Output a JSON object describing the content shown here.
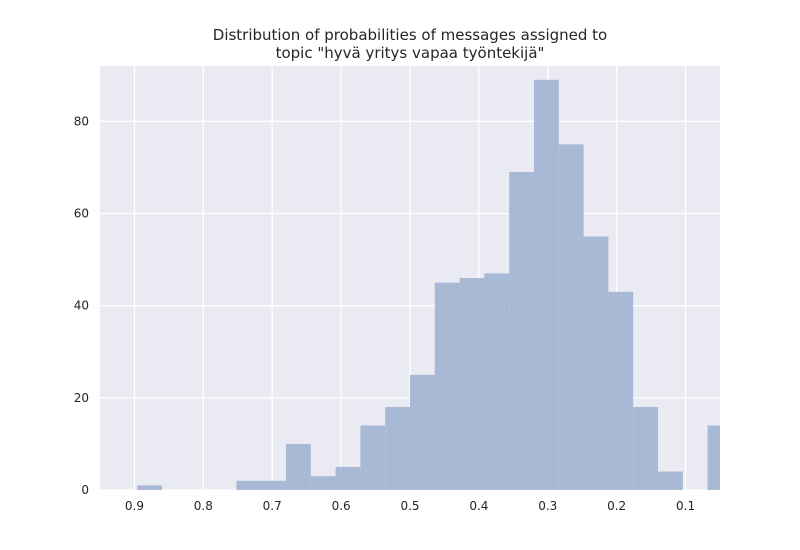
{
  "chart_data": {
    "type": "bar",
    "title": [
      "Distribution of probabilities of messages assigned to",
      "topic \"hyvä yritys vapaa työntekijä\""
    ],
    "xlabel": "",
    "ylabel": "",
    "x_axis": "reversed",
    "xlim": [
      0.95,
      0.05
    ],
    "ylim": [
      0,
      92
    ],
    "grid": true,
    "bar_color": "#a8b9d6",
    "plot_background": "#eaeaf2",
    "grid_color": "#ffffff",
    "xticks": [
      0.9,
      0.8,
      0.7,
      0.6,
      0.5,
      0.4,
      0.3,
      0.2,
      0.1
    ],
    "xtick_labels": [
      "0.9",
      "0.8",
      "0.7",
      "0.6",
      "0.5",
      "0.4",
      "0.3",
      "0.2",
      "0.1"
    ],
    "yticks": [
      0,
      20,
      40,
      60,
      80
    ],
    "ytick_labels": [
      "0",
      "20",
      "40",
      "60",
      "80"
    ],
    "bin_width": 0.036,
    "bins": [
      {
        "left": 0.896,
        "value": 1
      },
      {
        "left": 0.752,
        "value": 2
      },
      {
        "left": 0.716,
        "value": 2
      },
      {
        "left": 0.68,
        "value": 10
      },
      {
        "left": 0.644,
        "value": 3
      },
      {
        "left": 0.608,
        "value": 5
      },
      {
        "left": 0.572,
        "value": 14
      },
      {
        "left": 0.536,
        "value": 18
      },
      {
        "left": 0.5,
        "value": 25
      },
      {
        "left": 0.464,
        "value": 45
      },
      {
        "left": 0.428,
        "value": 46
      },
      {
        "left": 0.392,
        "value": 47
      },
      {
        "left": 0.356,
        "value": 69
      },
      {
        "left": 0.32,
        "value": 89
      },
      {
        "left": 0.284,
        "value": 75
      },
      {
        "left": 0.248,
        "value": 55
      },
      {
        "left": 0.212,
        "value": 43
      },
      {
        "left": 0.176,
        "value": 18
      },
      {
        "left": 0.14,
        "value": 4
      },
      {
        "left": 0.068,
        "value": 14
      }
    ]
  }
}
